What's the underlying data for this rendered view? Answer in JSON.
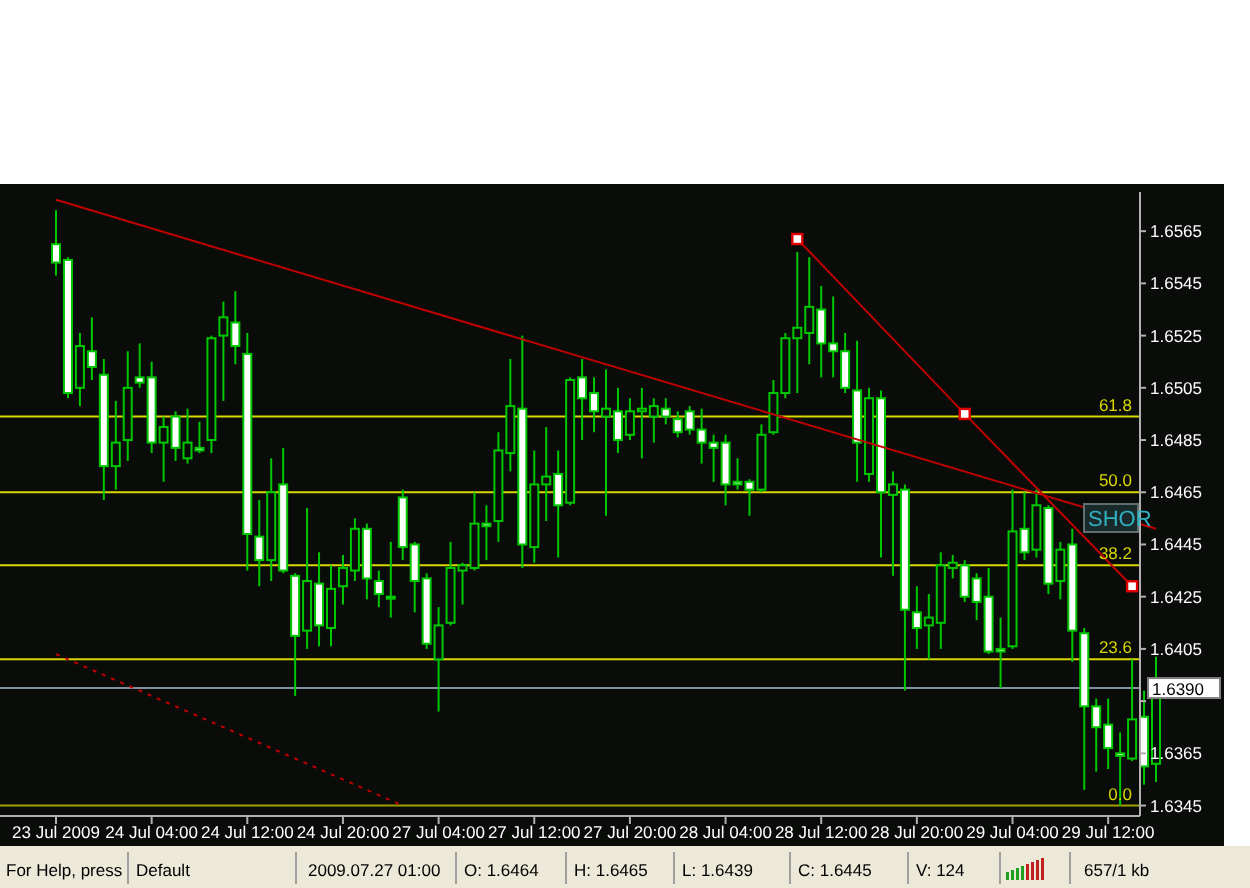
{
  "chart_data": {
    "type": "candlestick",
    "color": "#00c800",
    "categories": [
      "23 Jul 2009",
      null,
      null,
      null,
      null,
      null,
      null,
      null,
      "24 Jul 04:00",
      null,
      null,
      null,
      null,
      null,
      null,
      null,
      "24 Jul 12:00",
      null,
      null,
      null,
      null,
      null,
      null,
      null,
      "24 Jul 20:00",
      null,
      null,
      null,
      null,
      null,
      null,
      null,
      "27 Jul 04:00",
      null,
      null,
      null,
      null,
      null,
      null,
      null,
      "27 Jul 12:00",
      null,
      null,
      null,
      null,
      null,
      null,
      null,
      "27 Jul 20:00",
      null,
      null,
      null,
      null,
      null,
      null,
      null,
      "28 Jul 04:00",
      null,
      null,
      null,
      null,
      null,
      null,
      null,
      "28 Jul 12:00",
      null,
      null,
      null,
      null,
      null,
      null,
      null,
      "28 Jul 20:00",
      null,
      null,
      null,
      null,
      null,
      null,
      null,
      "29 Jul 04:00",
      null,
      null,
      null,
      null,
      null,
      null,
      null,
      "29 Jul 12:00",
      null,
      null,
      null,
      null
    ],
    "ohlc": [
      [
        1.656,
        1.6573,
        1.6548,
        1.6553
      ],
      [
        1.6554,
        1.6555,
        1.6501,
        1.6503
      ],
      [
        1.6505,
        1.6526,
        1.6498,
        1.6521
      ],
      [
        1.6519,
        1.6532,
        1.6508,
        1.6513
      ],
      [
        1.651,
        1.6516,
        1.6462,
        1.6475
      ],
      [
        1.6475,
        1.65,
        1.6466,
        1.6484
      ],
      [
        1.6485,
        1.6519,
        1.6477,
        1.6505
      ],
      [
        1.6509,
        1.6522,
        1.6505,
        1.6507
      ],
      [
        1.6509,
        1.6515,
        1.648,
        1.6484
      ],
      [
        1.6484,
        1.6494,
        1.6469,
        1.649
      ],
      [
        1.6494,
        1.6496,
        1.6477,
        1.6482
      ],
      [
        1.6478,
        1.6497,
        1.6476,
        1.6484
      ],
      [
        1.6482,
        1.6492,
        1.648,
        1.6481
      ],
      [
        1.6485,
        1.6525,
        1.648,
        1.6524
      ],
      [
        1.6525,
        1.6538,
        1.65,
        1.6532
      ],
      [
        1.653,
        1.6542,
        1.6514,
        1.6521
      ],
      [
        1.6518,
        1.6526,
        1.6435,
        1.6449
      ],
      [
        1.6448,
        1.6462,
        1.6429,
        1.6439
      ],
      [
        1.6439,
        1.6478,
        1.6431,
        1.6465
      ],
      [
        1.6468,
        1.6482,
        1.6434,
        1.6435
      ],
      [
        1.6433,
        1.6434,
        1.6387,
        1.641
      ],
      [
        1.6412,
        1.6459,
        1.6405,
        1.6431
      ],
      [
        1.643,
        1.6442,
        1.6406,
        1.6414
      ],
      [
        1.6413,
        1.6437,
        1.6406,
        1.6428
      ],
      [
        1.6429,
        1.6441,
        1.6422,
        1.6436
      ],
      [
        1.6435,
        1.6455,
        1.6431,
        1.6451
      ],
      [
        1.6451,
        1.6453,
        1.6424,
        1.6432
      ],
      [
        1.6431,
        1.6435,
        1.6421,
        1.6426
      ],
      [
        1.6425,
        1.6446,
        1.6417,
        1.6425
      ],
      [
        1.6463,
        1.6466,
        1.6439,
        1.6444
      ],
      [
        1.6445,
        1.6446,
        1.6419,
        1.6431
      ],
      [
        1.6432,
        1.6434,
        1.6405,
        1.6407
      ],
      [
        1.6401,
        1.6421,
        1.6381,
        1.6414
      ],
      [
        1.6415,
        1.6446,
        1.6414,
        1.6436
      ],
      [
        1.6435,
        1.6438,
        1.6422,
        1.6437
      ],
      [
        1.6436,
        1.6465,
        1.6435,
        1.6453
      ],
      [
        1.6453,
        1.646,
        1.6439,
        1.6452
      ],
      [
        1.6454,
        1.6488,
        1.6446,
        1.6481
      ],
      [
        1.648,
        1.6516,
        1.6473,
        1.6498
      ],
      [
        1.6497,
        1.6525,
        1.6436,
        1.6445
      ],
      [
        1.6444,
        1.6481,
        1.6438,
        1.6468
      ],
      [
        1.6468,
        1.649,
        1.6454,
        1.6471
      ],
      [
        1.6472,
        1.6481,
        1.644,
        1.646
      ],
      [
        1.6461,
        1.6509,
        1.646,
        1.6508
      ],
      [
        1.6509,
        1.6516,
        1.6485,
        1.6501
      ],
      [
        1.6503,
        1.6509,
        1.6488,
        1.6496
      ],
      [
        1.6494,
        1.6512,
        1.6456,
        1.6497
      ],
      [
        1.6496,
        1.6505,
        1.648,
        1.6485
      ],
      [
        1.6487,
        1.6501,
        1.6485,
        1.6496
      ],
      [
        1.6496,
        1.6505,
        1.6478,
        1.6497
      ],
      [
        1.6494,
        1.6501,
        1.6484,
        1.6498
      ],
      [
        1.6497,
        1.6501,
        1.6491,
        1.6494
      ],
      [
        1.6493,
        1.6496,
        1.6486,
        1.6488
      ],
      [
        1.6496,
        1.6498,
        1.6487,
        1.6489
      ],
      [
        1.6489,
        1.6497,
        1.6476,
        1.6484
      ],
      [
        1.6484,
        1.6487,
        1.6469,
        1.6482
      ],
      [
        1.6484,
        1.6487,
        1.646,
        1.6468
      ],
      [
        1.6469,
        1.6478,
        1.6466,
        1.6468
      ],
      [
        1.6469,
        1.647,
        1.6456,
        1.6466
      ],
      [
        1.6466,
        1.6491,
        1.6465,
        1.6487
      ],
      [
        1.6488,
        1.6508,
        1.6487,
        1.6503
      ],
      [
        1.6503,
        1.6526,
        1.6501,
        1.6524
      ],
      [
        1.6524,
        1.6557,
        1.6503,
        1.6528
      ],
      [
        1.6526,
        1.6555,
        1.6514,
        1.6536
      ],
      [
        1.6535,
        1.6544,
        1.6509,
        1.6522
      ],
      [
        1.6522,
        1.654,
        1.6509,
        1.6519
      ],
      [
        1.6519,
        1.6526,
        1.6503,
        1.6505
      ],
      [
        1.6504,
        1.6523,
        1.6469,
        1.6484
      ],
      [
        1.6472,
        1.6505,
        1.6469,
        1.6501
      ],
      [
        1.6501,
        1.6504,
        1.644,
        1.6465
      ],
      [
        1.6464,
        1.6473,
        1.6433,
        1.6468
      ],
      [
        1.6466,
        1.6468,
        1.6389,
        1.642
      ],
      [
        1.6419,
        1.6429,
        1.6405,
        1.6413
      ],
      [
        1.6414,
        1.6426,
        1.6401,
        1.6417
      ],
      [
        1.6415,
        1.6442,
        1.6405,
        1.6437
      ],
      [
        1.6436,
        1.6441,
        1.6432,
        1.6438
      ],
      [
        1.6437,
        1.6439,
        1.6423,
        1.6425
      ],
      [
        1.6432,
        1.6434,
        1.6416,
        1.6423
      ],
      [
        1.6425,
        1.6436,
        1.6403,
        1.6404
      ],
      [
        1.6405,
        1.6417,
        1.639,
        1.6404
      ],
      [
        1.6406,
        1.6466,
        1.6405,
        1.645
      ],
      [
        1.6451,
        1.6465,
        1.6439,
        1.6442
      ],
      [
        1.6443,
        1.6466,
        1.644,
        1.646
      ],
      [
        1.6459,
        1.646,
        1.6426,
        1.643
      ],
      [
        1.6431,
        1.6446,
        1.6424,
        1.6443
      ],
      [
        1.6445,
        1.6451,
        1.64,
        1.6412
      ],
      [
        1.6411,
        1.6413,
        1.6351,
        1.6383
      ],
      [
        1.6383,
        1.6386,
        1.6358,
        1.6375
      ],
      [
        1.6376,
        1.6386,
        1.6359,
        1.6367
      ],
      [
        1.6365,
        1.6373,
        1.6345,
        1.6364
      ],
      [
        1.6363,
        1.6401,
        1.6362,
        1.6378
      ],
      [
        1.6379,
        1.6389,
        1.6353,
        1.636
      ],
      [
        1.6361,
        1.6402,
        1.6354,
        1.639
      ]
    ],
    "series": [
      {
        "type": "line",
        "color": "#c00000",
        "line_style": "solid",
        "values": [
          1.6577,
          null,
          null,
          null,
          null,
          null,
          null,
          null,
          null,
          null,
          null,
          null,
          null,
          null,
          null,
          null,
          null,
          null,
          null,
          null,
          null,
          null,
          null,
          null,
          null,
          null,
          null,
          null,
          null,
          null,
          null,
          null,
          null,
          null,
          null,
          null,
          null,
          null,
          null,
          null,
          null,
          null,
          null,
          null,
          null,
          null,
          null,
          null,
          null,
          null,
          null,
          null,
          null,
          null,
          null,
          null,
          null,
          null,
          null,
          null,
          null,
          null,
          null,
          null,
          null,
          null,
          null,
          null,
          null,
          null,
          null,
          null,
          null,
          null,
          null,
          null,
          null,
          null,
          null,
          null,
          null,
          null,
          null,
          null,
          null,
          null,
          null,
          null,
          null,
          null,
          null,
          null,
          1.6451
        ]
      },
      {
        "type": "line",
        "color": "#c00000",
        "line_style": "solid",
        "marker": "square",
        "values": [
          null,
          null,
          null,
          null,
          null,
          null,
          null,
          null,
          null,
          null,
          null,
          null,
          null,
          null,
          null,
          null,
          null,
          null,
          null,
          null,
          null,
          null,
          null,
          null,
          null,
          null,
          null,
          null,
          null,
          null,
          null,
          null,
          null,
          null,
          null,
          null,
          null,
          null,
          null,
          null,
          null,
          null,
          null,
          null,
          null,
          null,
          null,
          null,
          null,
          null,
          null,
          null,
          null,
          null,
          null,
          null,
          null,
          null,
          null,
          null,
          null,
          null,
          1.6562,
          null,
          null,
          null,
          null,
          null,
          null,
          null,
          null,
          null,
          null,
          null,
          null,
          null,
          1.6495,
          null,
          null,
          null,
          null,
          null,
          null,
          null,
          null,
          null,
          null,
          null,
          null,
          null,
          1.6429,
          null,
          null
        ]
      },
      {
        "type": "line",
        "color": "#c00000",
        "line_style": "dotted",
        "values": [
          1.6403,
          null,
          null,
          null,
          null,
          null,
          null,
          null,
          null,
          null,
          null,
          null,
          null,
          null,
          null,
          null,
          null,
          null,
          null,
          null,
          null,
          null,
          null,
          null,
          null,
          null,
          null,
          null,
          null,
          1.6345,
          null,
          null,
          null,
          null,
          null,
          null,
          null,
          null,
          null,
          null,
          null,
          null,
          null,
          null,
          null,
          null,
          null,
          null,
          null,
          null,
          null,
          null,
          null,
          null,
          null,
          null,
          null,
          null,
          null,
          null,
          null,
          null,
          null,
          null,
          null,
          null,
          null,
          null,
          null,
          null,
          null,
          null,
          null,
          null,
          null,
          null,
          null,
          null,
          null,
          null,
          null,
          null,
          null,
          null,
          null,
          null,
          null,
          null,
          null,
          null,
          null,
          null,
          null
        ]
      }
    ],
    "ylim": [
      1.6341,
      1.658
    ],
    "yticks": [
      1.6565,
      1.6545,
      1.6525,
      1.6505,
      1.6485,
      1.6465,
      1.6445,
      1.6425,
      1.6405,
      {
        "value": 1.6385,
        "label": null
      },
      1.6365,
      1.6345
    ],
    "ref_lines": [
      {
        "axis": "y",
        "value": 1.6494,
        "color": "#d8d800"
      },
      {
        "axis": "y",
        "value": 1.6465,
        "color": "#d8d800"
      },
      {
        "axis": "y",
        "value": 1.6437,
        "color": "#d8d800"
      },
      {
        "axis": "y",
        "value": 1.6401,
        "color": "#d8d800"
      },
      {
        "axis": "y",
        "value": 1.6345,
        "color": "#a0a000"
      },
      {
        "axis": "y",
        "value": 1.639,
        "label": "1.6390",
        "color": "#8090a0"
      }
    ],
    "annotations": [
      "SHOR",
      {
        "text": "61.8",
        "y": 1.6494
      },
      {
        "text": "50.0",
        "y": 1.6465
      },
      {
        "text": "38.2",
        "y": 1.6437
      },
      {
        "text": "23.6",
        "y": 1.6401
      },
      {
        "text": "0.0",
        "y": 1.6345
      },
      "For Help, press",
      "Default",
      "2009.07.27 01:00",
      "O: 1.6464",
      "H: 1.6465",
      "L: 1.6439",
      "C: 1.6445",
      "V: 124",
      "657/1 kb"
    ]
  }
}
